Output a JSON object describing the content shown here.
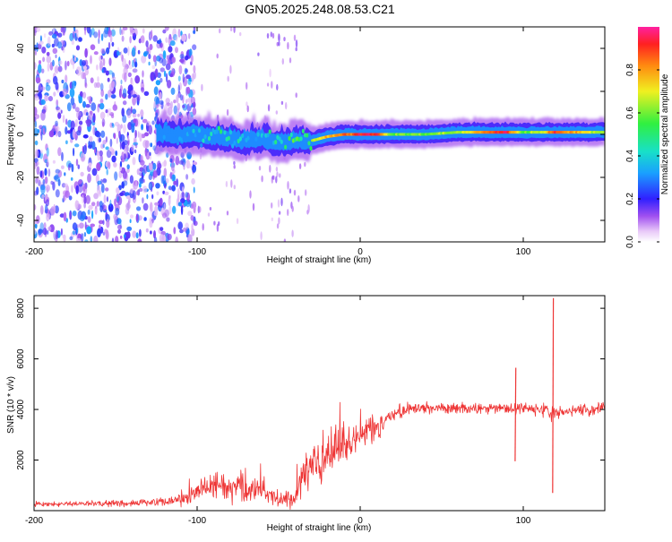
{
  "page": {
    "title": "GN05.2025.248.08.53.C21"
  },
  "colors": {
    "spectrum_low": "#7a2be8",
    "spectrum_mid": "#19e3c9",
    "spectrum_high": "#ff1a2a",
    "snr_line": "#ee3535",
    "axis": "#000000"
  },
  "chart_data": [
    {
      "type": "heatmap",
      "name": "spectrogram",
      "title": "GN05.2025.248.08.53.C21",
      "xlabel": "Height of straight line (km)",
      "ylabel": "Frequency (Hz)",
      "xlim": [
        -200,
        150
      ],
      "ylim": [
        -50,
        50
      ],
      "xticks": [
        -200,
        -100,
        0,
        100
      ],
      "xtick_labels": [
        "-200",
        "-100",
        "0",
        "100"
      ],
      "yticks": [
        -40,
        -20,
        0,
        20,
        40
      ],
      "ytick_labels": [
        "-40",
        "-20",
        "0",
        "20",
        "40"
      ],
      "ridge": {
        "x": [
          -125,
          -110,
          -100,
          -90,
          -80,
          -70,
          -60,
          -50,
          -45,
          -40,
          -35,
          -30,
          -20,
          -10,
          0,
          10,
          20,
          40,
          60,
          80,
          90,
          100,
          110,
          120,
          150
        ],
        "freq": [
          0,
          0,
          0,
          -1,
          -2,
          -3,
          -2,
          -4,
          -4,
          -3,
          -3,
          -3,
          -1,
          0,
          0,
          0,
          0,
          0,
          1,
          1,
          1,
          1,
          1,
          1,
          1
        ],
        "amp": [
          0.25,
          0.35,
          0.42,
          0.45,
          0.46,
          0.46,
          0.44,
          0.42,
          0.5,
          0.6,
          0.55,
          0.62,
          0.75,
          0.85,
          0.92,
          0.9,
          0.6,
          0.6,
          0.62,
          0.88,
          0.95,
          0.6,
          0.62,
          0.9,
          0.6
        ]
      },
      "noise_region_x": [
        -200,
        -105
      ],
      "colorbar": {
        "label": "Normalized spectral amplitude",
        "range": [
          0,
          1
        ],
        "ticks": [
          0.0,
          0.2,
          0.4,
          0.6,
          0.8
        ],
        "tick_labels": [
          "0.0",
          "0.2",
          "0.4",
          "0.6",
          "0.8"
        ]
      }
    },
    {
      "type": "line",
      "name": "snr",
      "xlabel": "Height of straight line (km)",
      "ylabel": "SNR (10 * v/v)",
      "xlim": [
        -200,
        150
      ],
      "ylim": [
        0,
        8500
      ],
      "xticks": [
        -200,
        -100,
        0,
        100
      ],
      "xtick_labels": [
        "-200",
        "-100",
        "0",
        "100"
      ],
      "yticks": [
        2000,
        4000,
        6000,
        8000
      ],
      "ytick_labels": [
        "2000",
        "4000",
        "6000",
        "8000"
      ],
      "envelope": {
        "x": [
          -200,
          -150,
          -120,
          -105,
          -100,
          -90,
          -80,
          -70,
          -60,
          -50,
          -40,
          -35,
          -30,
          -20,
          -10,
          0,
          10,
          20,
          30,
          50,
          90,
          100,
          110,
          115,
          116,
          118,
          120,
          150
        ],
        "center": [
          250,
          280,
          350,
          500,
          900,
          1000,
          950,
          900,
          750,
          550,
          450,
          1300,
          1800,
          2300,
          2700,
          3000,
          3300,
          3800,
          4050,
          4050,
          4050,
          4050,
          4000,
          4050,
          4000,
          4050,
          3900,
          4050
        ],
        "spread": [
          100,
          120,
          150,
          250,
          400,
          500,
          500,
          500,
          400,
          300,
          300,
          700,
          800,
          800,
          700,
          600,
          500,
          250,
          200,
          180,
          180,
          180,
          200,
          350,
          400,
          350,
          200,
          200
        ]
      },
      "spikes": [
        {
          "x": 95,
          "low": 1950,
          "high": 5650
        },
        {
          "x": 118,
          "low": 700,
          "high": 8400
        }
      ]
    }
  ]
}
